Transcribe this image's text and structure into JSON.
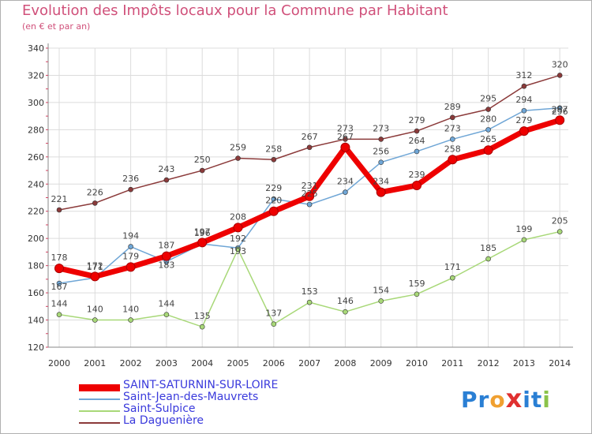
{
  "header": {
    "title": "Evolution des Impôts locaux pour la Commune par Habitant",
    "subtitle": "(en € et par an)"
  },
  "logo": {
    "text": "Proxiti",
    "letters": [
      "P",
      "r",
      "o",
      "x",
      "i",
      "t",
      "i"
    ],
    "colors": [
      "#2a7fd4",
      "#2a7fd4",
      "#f0a030",
      "#e03030",
      "#2a7fd4",
      "#2a7fd4",
      "#8bc34a"
    ]
  },
  "chart_data": {
    "type": "line",
    "title": "Evolution des Impôts locaux pour la Commune par Habitant",
    "subtitle": "(en € et par an)",
    "xlabel": "",
    "ylabel": "",
    "x": [
      "2000",
      "2001",
      "2002",
      "2003",
      "2004",
      "2005",
      "2006",
      "2007",
      "2008",
      "2009",
      "2010",
      "2011",
      "2012",
      "2013",
      "2014"
    ],
    "ylim": [
      120,
      340
    ],
    "yticks": [
      120,
      140,
      160,
      180,
      200,
      220,
      240,
      260,
      280,
      300,
      320,
      340
    ],
    "grid": true,
    "legend_position": "bottom-left",
    "series": [
      {
        "name": "SAINT-SATURNIN-SUR-LOIRE",
        "color": "#ee0000",
        "emphasis": true,
        "values": [
          178,
          172,
          179,
          187,
          197,
          208,
          220,
          231,
          267,
          234,
          239,
          258,
          265,
          279,
          287
        ]
      },
      {
        "name": "Saint-Jean-des-Mauvrets",
        "color": "#6fa6d6",
        "emphasis": false,
        "values": [
          167,
          171,
          194,
          183,
          196,
          193,
          229,
          225,
          234,
          256,
          264,
          273,
          280,
          294,
          296
        ]
      },
      {
        "name": "Saint-Sulpice",
        "color": "#a8d878",
        "emphasis": false,
        "values": [
          144,
          140,
          140,
          144,
          135,
          192,
          137,
          153,
          146,
          154,
          159,
          171,
          185,
          199,
          205
        ]
      },
      {
        "name": "La Daguenière",
        "color": "#8b3a3a",
        "emphasis": false,
        "values": [
          221,
          226,
          236,
          243,
          250,
          259,
          258,
          267,
          273,
          273,
          279,
          289,
          295,
          312,
          320
        ]
      }
    ]
  }
}
